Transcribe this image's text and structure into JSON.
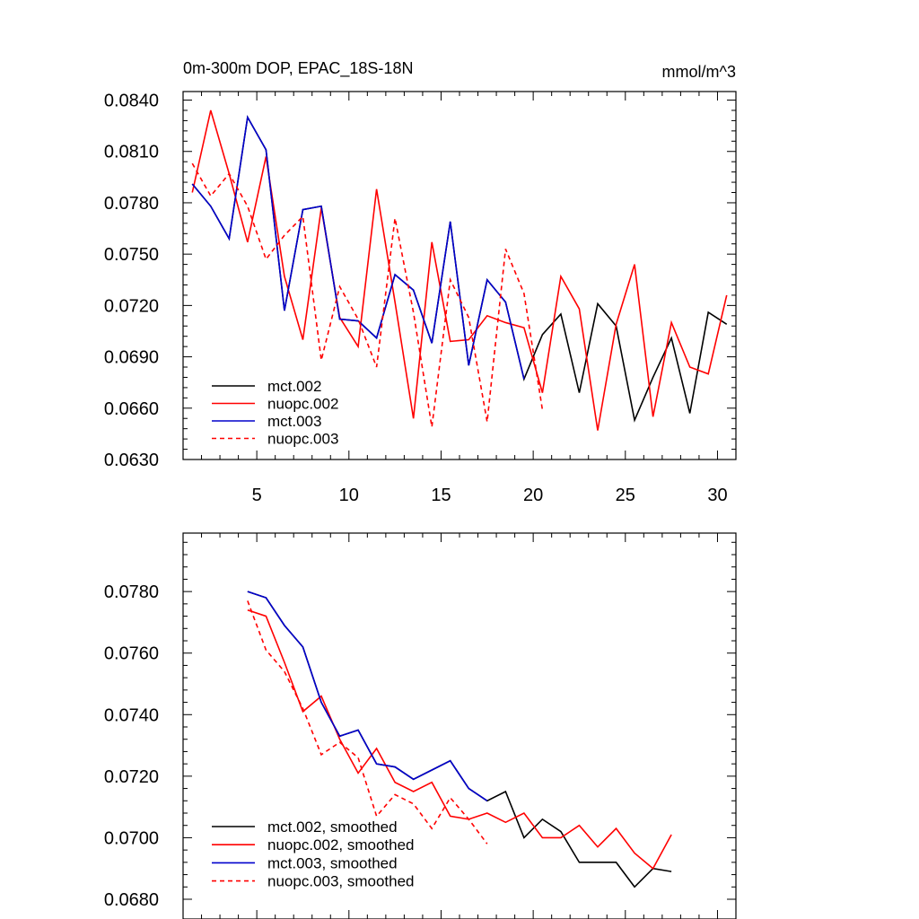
{
  "chart_data": [
    {
      "type": "line",
      "title": "0m-300m DOP, EPAC_18S-18N",
      "units": "mmol/m^3",
      "xlim": [
        1,
        31
      ],
      "ylim": [
        0.063,
        0.0845
      ],
      "xticks": [
        5,
        10,
        15,
        20,
        25,
        30
      ],
      "yticks": [
        0.063,
        0.066,
        0.069,
        0.072,
        0.075,
        0.078,
        0.081,
        0.084
      ],
      "ytick_labels": [
        "0.0630",
        "0.0660",
        "0.0690",
        "0.0720",
        "0.0750",
        "0.0780",
        "0.0810",
        "0.0840"
      ],
      "legend_position": "bottom-left",
      "series": [
        {
          "name": "mct.002",
          "color": "#000000",
          "dash": false,
          "x": [
            1.5,
            2.5,
            3.5,
            4.5,
            5.5,
            6.5,
            7.5,
            8.5,
            9.5,
            10.5,
            11.5,
            12.5,
            13.5,
            14.5,
            15.5,
            16.5,
            17.5,
            18.5,
            19.5,
            20.5,
            21.5,
            22.5,
            23.5,
            24.5,
            25.5,
            26.5,
            27.5,
            28.5,
            29.5,
            30.5
          ],
          "values": [
            0.0791,
            0.0778,
            0.0759,
            0.083,
            0.0811,
            0.0717,
            0.0776,
            0.0778,
            0.0712,
            0.0711,
            0.0701,
            0.0738,
            0.0729,
            0.0698,
            0.0769,
            0.0685,
            0.0735,
            0.0722,
            0.0677,
            0.0703,
            0.0715,
            0.0669,
            0.0721,
            0.0708,
            0.0653,
            0.0678,
            0.0701,
            0.0657,
            0.0716,
            0.0709
          ]
        },
        {
          "name": "nuopc.002",
          "color": "#ff0000",
          "dash": false,
          "x": [
            1.5,
            2.5,
            3.5,
            4.5,
            5.5,
            6.5,
            7.5,
            8.5,
            9.5,
            10.5,
            11.5,
            12.5,
            13.5,
            14.5,
            15.5,
            16.5,
            17.5,
            18.5,
            19.5,
            20.5,
            21.5,
            22.5,
            23.5,
            24.5,
            25.5,
            26.5,
            27.5,
            28.5,
            29.5,
            30.5
          ],
          "values": [
            0.0786,
            0.0834,
            0.0797,
            0.0757,
            0.0807,
            0.0737,
            0.07,
            0.0777,
            0.0713,
            0.0696,
            0.0788,
            0.0722,
            0.0654,
            0.0757,
            0.0699,
            0.07,
            0.0714,
            0.071,
            0.0707,
            0.0669,
            0.0737,
            0.0718,
            0.0647,
            0.0709,
            0.0744,
            0.0655,
            0.071,
            0.0684,
            0.068,
            0.0726
          ]
        },
        {
          "name": "mct.003",
          "color": "#0000cc",
          "dash": false,
          "x": [
            1.5,
            2.5,
            3.5,
            4.5,
            5.5,
            6.5,
            7.5,
            8.5,
            9.5,
            10.5,
            11.5,
            12.5,
            13.5,
            14.5,
            15.5,
            16.5,
            17.5,
            18.5,
            19.5
          ],
          "values": [
            0.0791,
            0.0778,
            0.0759,
            0.083,
            0.0811,
            0.0717,
            0.0776,
            0.0778,
            0.0712,
            0.0711,
            0.0701,
            0.0738,
            0.0729,
            0.0698,
            0.0769,
            0.0685,
            0.0735,
            0.0722,
            0.0677
          ]
        },
        {
          "name": "nuopc.003",
          "color": "#ff0000",
          "dash": true,
          "x": [
            1.5,
            2.5,
            3.5,
            4.5,
            5.5,
            6.5,
            7.5,
            8.5,
            9.5,
            10.5,
            11.5,
            12.5,
            13.5,
            14.5,
            15.5,
            16.5,
            17.5,
            18.5,
            19.5,
            20.5
          ],
          "values": [
            0.0803,
            0.0784,
            0.0797,
            0.0778,
            0.0747,
            0.0761,
            0.0772,
            0.0688,
            0.0731,
            0.0712,
            0.0684,
            0.0771,
            0.0716,
            0.0649,
            0.0735,
            0.0713,
            0.0652,
            0.0753,
            0.0727,
            0.0659
          ]
        }
      ]
    },
    {
      "type": "line",
      "title": "",
      "xlim": [
        1,
        31
      ],
      "ylim": [
        0.068,
        0.0799
      ],
      "xticks": [
        5,
        10,
        15,
        20,
        25,
        30
      ],
      "yticks": [
        0.068,
        0.07,
        0.072,
        0.074,
        0.076,
        0.078
      ],
      "ytick_labels": [
        "0.0680",
        "0.0700",
        "0.0720",
        "0.0740",
        "0.0760",
        "0.0780"
      ],
      "legend_position": "bottom-left",
      "series": [
        {
          "name": "mct.002, smoothed",
          "color": "#000000",
          "dash": false,
          "x": [
            4.5,
            5.5,
            6.5,
            7.5,
            8.5,
            9.5,
            10.5,
            11.5,
            12.5,
            13.5,
            14.5,
            15.5,
            16.5,
            17.5,
            18.5,
            19.5,
            20.5,
            21.5,
            22.5,
            23.5,
            24.5,
            25.5,
            26.5,
            27.5
          ],
          "values": [
            0.078,
            0.0778,
            0.0769,
            0.0762,
            0.0744,
            0.0733,
            0.0735,
            0.0724,
            0.0723,
            0.0719,
            0.0722,
            0.0725,
            0.0716,
            0.0712,
            0.0715,
            0.07,
            0.0706,
            0.0702,
            0.0692,
            0.0692,
            0.0692,
            0.0684,
            0.069,
            0.0689
          ]
        },
        {
          "name": "nuopc.002, smoothed",
          "color": "#ff0000",
          "dash": false,
          "x": [
            4.5,
            5.5,
            6.5,
            7.5,
            8.5,
            9.5,
            10.5,
            11.5,
            12.5,
            13.5,
            14.5,
            15.5,
            16.5,
            17.5,
            18.5,
            19.5,
            20.5,
            21.5,
            22.5,
            23.5,
            24.5,
            25.5,
            26.5,
            27.5
          ],
          "values": [
            0.0774,
            0.0772,
            0.0757,
            0.0741,
            0.0746,
            0.0732,
            0.0721,
            0.0729,
            0.0718,
            0.0715,
            0.0718,
            0.0707,
            0.0706,
            0.0708,
            0.0705,
            0.0708,
            0.07,
            0.07,
            0.0704,
            0.0697,
            0.0703,
            0.0695,
            0.069,
            0.0701
          ]
        },
        {
          "name": "mct.003, smoothed",
          "color": "#0000cc",
          "dash": false,
          "x": [
            4.5,
            5.5,
            6.5,
            7.5,
            8.5,
            9.5,
            10.5,
            11.5,
            12.5,
            13.5,
            14.5,
            15.5,
            16.5,
            17.5
          ],
          "values": [
            0.078,
            0.0778,
            0.0769,
            0.0762,
            0.0744,
            0.0733,
            0.0735,
            0.0724,
            0.0723,
            0.0719,
            0.0722,
            0.0725,
            0.0716,
            0.0712
          ]
        },
        {
          "name": "nuopc.003, smoothed",
          "color": "#ff0000",
          "dash": true,
          "x": [
            4.5,
            5.5,
            6.5,
            7.5,
            8.5,
            9.5,
            10.5,
            11.5,
            12.5,
            13.5,
            14.5,
            15.5,
            16.5,
            17.5
          ],
          "values": [
            0.0777,
            0.0761,
            0.0754,
            0.0742,
            0.0727,
            0.0731,
            0.0726,
            0.0707,
            0.0714,
            0.0711,
            0.0703,
            0.0713,
            0.0706,
            0.0698
          ]
        }
      ]
    }
  ]
}
